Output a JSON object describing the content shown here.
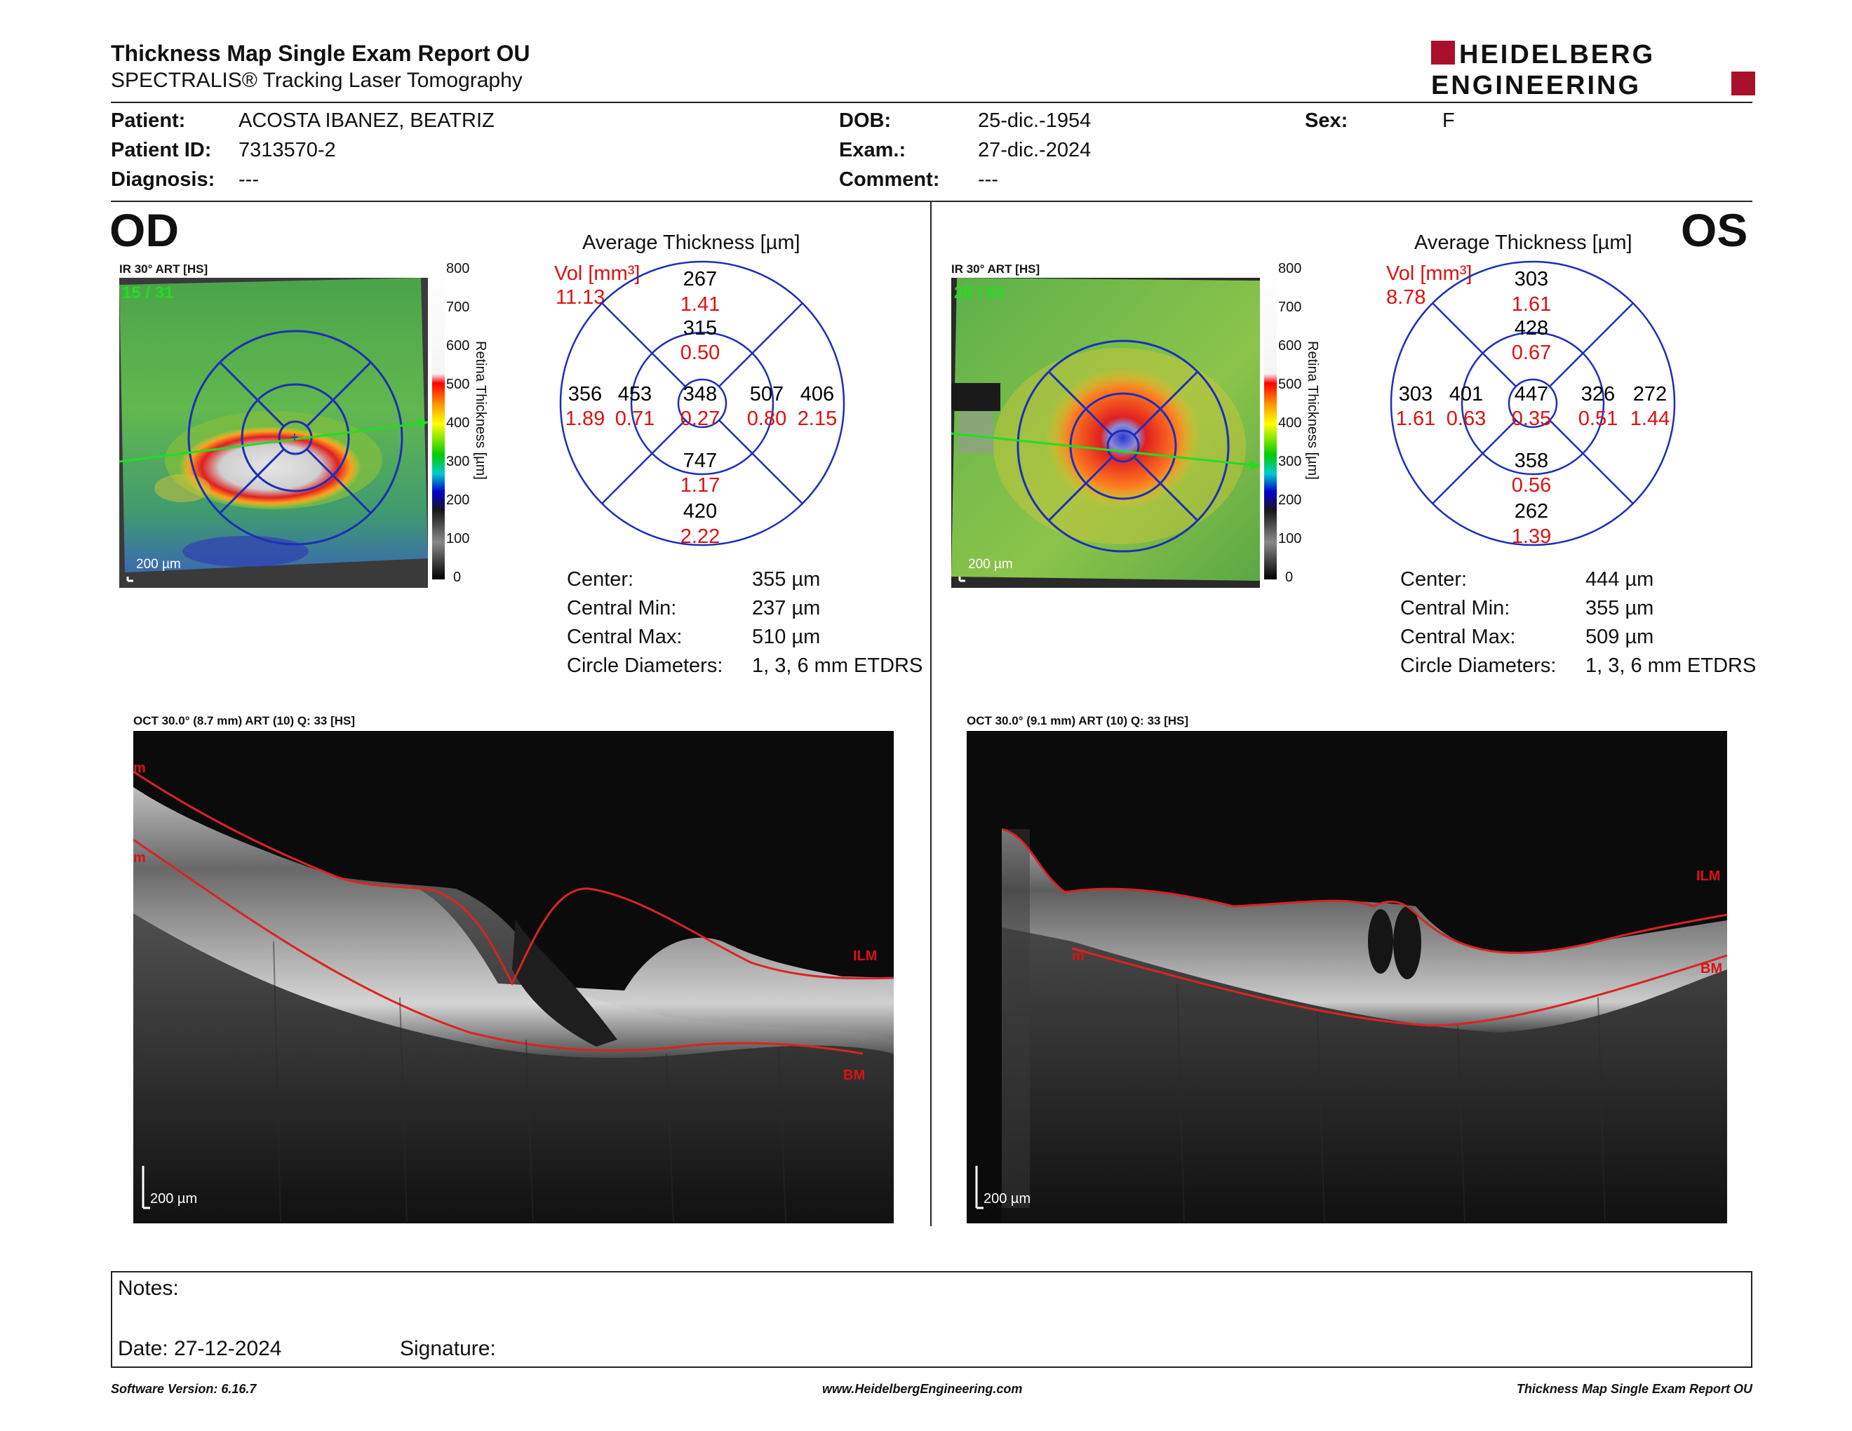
{
  "header": {
    "title": "Thickness Map Single Exam Report OU",
    "subtitle": "SPECTRALIS® Tracking Laser Tomography",
    "logo_line1": "HEIDELBERG",
    "logo_line2": "ENGINEERING"
  },
  "patient": {
    "patient_label": "Patient:",
    "patient_value": "ACOSTA IBANEZ, BEATRIZ",
    "id_label": "Patient ID:",
    "id_value": "7313570-2",
    "diagnosis_label": "Diagnosis:",
    "diagnosis_value": "---",
    "dob_label": "DOB:",
    "dob_value": "25-dic.-1954",
    "exam_label": "Exam.:",
    "exam_value": "27-dic.-2024",
    "comment_label": "Comment:",
    "comment_value": "---",
    "sex_label": "Sex:",
    "sex_value": "F"
  },
  "scale": {
    "ticks": [
      "800",
      "700",
      "600",
      "500",
      "400",
      "300",
      "200",
      "100",
      "0"
    ],
    "label": "Retina Thickness [µm]"
  },
  "od": {
    "eye": "OD",
    "map_label": "IR 30° ART [HS]",
    "frame": "15 / 31",
    "scalebar": "200 µm",
    "avg_title": "Average Thickness [µm]",
    "vol_label": "Vol [mm³]",
    "vol_total": "11.13",
    "etdrs": {
      "center": {
        "t": "348",
        "v": "0.27"
      },
      "inner_sup": {
        "t": "315",
        "v": "0.50"
      },
      "inner_inf": {
        "t": "747",
        "v": "1.17"
      },
      "inner_left": {
        "t": "453",
        "v": "0.71"
      },
      "inner_right": {
        "t": "507",
        "v": "0.80"
      },
      "outer_sup": {
        "t": "267",
        "v": "1.41"
      },
      "outer_inf": {
        "t": "420",
        "v": "2.22"
      },
      "outer_left": {
        "t": "356",
        "v": "1.89"
      },
      "outer_right": {
        "t": "406",
        "v": "2.15"
      }
    },
    "stats": [
      {
        "label": "Center:",
        "value": "355 µm"
      },
      {
        "label": "Central Min:",
        "value": "237 µm"
      },
      {
        "label": "Central Max:",
        "value": "510 µm"
      },
      {
        "label": "Circle Diameters:",
        "value": "1, 3, 6 mm ETDRS"
      }
    ],
    "oct_label": "OCT 30.0° (8.7 mm) ART (10) Q: 33 [HS]",
    "oct_scalebar": "200 µm",
    "oct_tags": {
      "m1": "m",
      "m2": "m",
      "ilm": "ILM",
      "bm": "BM"
    }
  },
  "os": {
    "eye": "OS",
    "map_label": "IR 30° ART [HS]",
    "frame": "28 / 61",
    "scalebar": "200 µm",
    "avg_title": "Average Thickness [µm]",
    "vol_label": "Vol [mm³]",
    "vol_total": "8.78",
    "etdrs": {
      "center": {
        "t": "447",
        "v": "0.35"
      },
      "inner_sup": {
        "t": "428",
        "v": "0.67"
      },
      "inner_inf": {
        "t": "358",
        "v": "0.56"
      },
      "inner_left": {
        "t": "401",
        "v": "0.63"
      },
      "inner_right": {
        "t": "326",
        "v": "0.51"
      },
      "outer_sup": {
        "t": "303",
        "v": "1.61"
      },
      "outer_inf": {
        "t": "262",
        "v": "1.39"
      },
      "outer_left": {
        "t": "303",
        "v": "1.61"
      },
      "outer_right": {
        "t": "272",
        "v": "1.44"
      }
    },
    "stats": [
      {
        "label": "Center:",
        "value": "444 µm"
      },
      {
        "label": "Central Min:",
        "value": "355 µm"
      },
      {
        "label": "Central Max:",
        "value": "509 µm"
      },
      {
        "label": "Circle Diameters:",
        "value": "1, 3, 6 mm ETDRS"
      }
    ],
    "oct_label": "OCT 30.0° (9.1 mm) ART (10) Q: 33 [HS]",
    "oct_scalebar": "200 µm",
    "oct_tags": {
      "m1": "m",
      "ilm": "ILM",
      "bm": "BM"
    }
  },
  "notes": {
    "notes_label": "Notes:",
    "date_label": "Date: 27-12-2024",
    "signature_label": "Signature:"
  },
  "footer": {
    "software": "Software Version: 6.16.7",
    "website": "www.HeidelbergEngineering.com",
    "report": "Thickness Map Single Exam Report OU"
  },
  "colors": {
    "red": "#d11111",
    "blue": "#1c2fb8",
    "brand_red": "#a8102c",
    "green_arrow": "#22dd22"
  }
}
